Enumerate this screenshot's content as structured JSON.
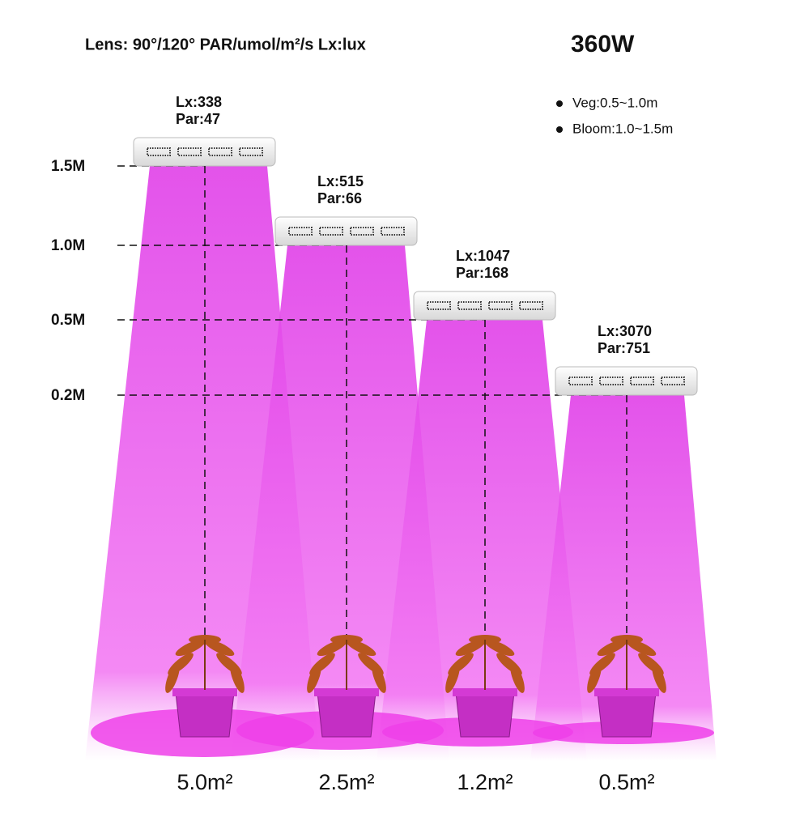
{
  "header": {
    "specs": "Lens: 90°/120°  PAR/umol/m²/s   Lx:lux",
    "power": "360W"
  },
  "legend": [
    "Veg:0.5~1.0m",
    "Bloom:1.0~1.5m"
  ],
  "heights": [
    "1.5M",
    "1.0M",
    "0.5M",
    "0.2M"
  ],
  "lamps": [
    {
      "lx": "Lx:338",
      "par": "Par:47",
      "area": "5.0m²"
    },
    {
      "lx": "Lx:515",
      "par": "Par:66",
      "area": "2.5m²"
    },
    {
      "lx": "Lx:1047",
      "par": "Par:168",
      "area": "1.2m²"
    },
    {
      "lx": "Lx:3070",
      "par": "Par:751",
      "area": "0.5m²"
    }
  ]
}
